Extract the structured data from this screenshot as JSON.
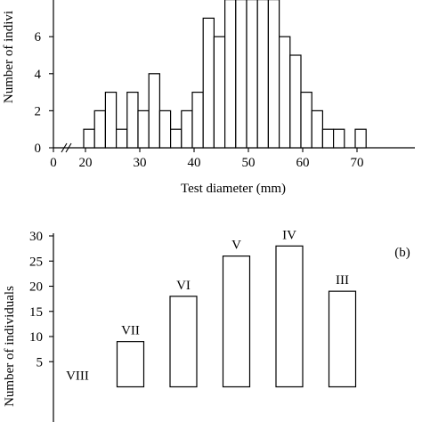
{
  "chart_data": [
    {
      "type": "bar",
      "panel": "a",
      "ylabel": "Number of indivi",
      "xlabel": "Test diameter (mm)",
      "x_ticks": [
        0,
        20,
        30,
        40,
        50,
        60,
        70
      ],
      "y_ticks": [
        0,
        2,
        4,
        6
      ],
      "ylim": [
        0,
        8
      ],
      "axis_break": true,
      "categories": [
        20,
        22,
        24,
        26,
        28,
        30,
        32,
        34,
        36,
        38,
        40,
        42,
        44,
        46,
        48,
        50,
        52,
        54,
        56,
        58,
        60,
        62,
        64,
        66,
        68,
        70
      ],
      "values": [
        1,
        2,
        3,
        1,
        3,
        2,
        4,
        2,
        1,
        2,
        3,
        7,
        6,
        8,
        8,
        8,
        8,
        8,
        6,
        5,
        3,
        2,
        1,
        1,
        0,
        1
      ]
    },
    {
      "type": "bar",
      "panel": "b",
      "panel_label": "(b)",
      "ylabel": "Number of individuals",
      "y_ticks": [
        5,
        10,
        15,
        20,
        25,
        30
      ],
      "ylim": [
        0,
        30
      ],
      "categories": [
        "VIII",
        "VII",
        "VI",
        "V",
        "IV",
        "III"
      ],
      "values": [
        0,
        9,
        18,
        26,
        28,
        19
      ]
    }
  ]
}
